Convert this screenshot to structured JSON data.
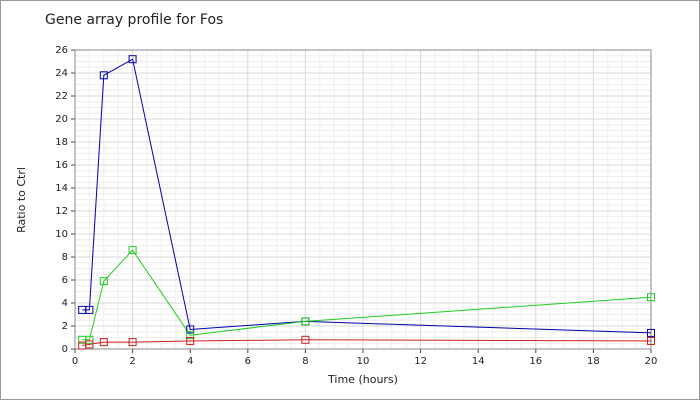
{
  "chart_data": {
    "type": "line",
    "title": "Gene array profile for Fos",
    "x_label": "Time (hours)",
    "y_label": "Ratio to Ctrl",
    "x": [
      0.25,
      0.5,
      1,
      2,
      4,
      8,
      20
    ],
    "series": [
      {
        "color": "#0000a8",
        "values": [
          3.4,
          3.4,
          23.8,
          25.2,
          1.7,
          2.4,
          1.4
        ]
      },
      {
        "color": "#22cc22",
        "values": [
          0.8,
          0.8,
          5.9,
          8.6,
          1.2,
          2.4,
          4.5
        ]
      },
      {
        "color": "#cc2020",
        "values": [
          0.3,
          0.4,
          0.6,
          0.6,
          0.7,
          0.8,
          0.7
        ]
      }
    ],
    "xlim": [
      0,
      20
    ],
    "xticks": [
      0,
      2,
      4,
      6,
      8,
      10,
      12,
      14,
      16,
      18,
      20
    ],
    "ylim": [
      0,
      26
    ],
    "yticks": [
      0,
      2,
      4,
      6,
      8,
      10,
      12,
      14,
      16,
      18,
      20,
      22,
      24,
      26
    ],
    "grid": true,
    "minor_grid": true,
    "marker": "square"
  }
}
